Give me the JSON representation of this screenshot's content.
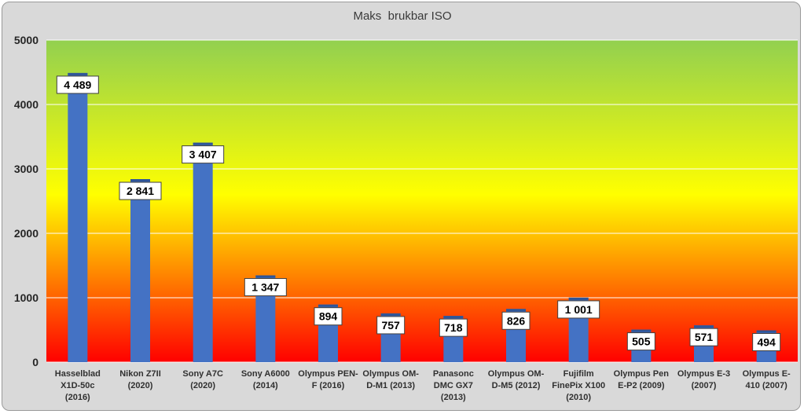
{
  "chart_data": {
    "type": "bar",
    "title": "Maks  brukbar ISO",
    "xlabel": "",
    "ylabel": "",
    "ylim": [
      0,
      5000
    ],
    "yticks": [
      0,
      1000,
      2000,
      3000,
      4000,
      5000
    ],
    "grid": true,
    "legend": "none",
    "categories": [
      "Hasselblad X1D-50c (2016)",
      "Nikon Z7II (2020)",
      "Sony A7C (2020)",
      "Sony A6000 (2014)",
      "Olympus PEN-F (2016)",
      "Olympus OM-D-M1 (2013)",
      "Panasonc DMC GX7 (2013)",
      "Olympus OM-D-M5 (2012)",
      "Fujifilm FinePix X100 (2010)",
      "Olympus Pen E-P2 (2009)",
      "Olympus E-3 (2007)",
      "Olympus E-410 (2007)"
    ],
    "category_lines": [
      [
        "Hasselblad",
        "X1D-50c",
        "(2016)"
      ],
      [
        "Nikon Z7II",
        "(2020)"
      ],
      [
        "Sony A7C",
        "(2020)"
      ],
      [
        "Sony A6000",
        "(2014)"
      ],
      [
        "Olympus PEN-",
        "F (2016)"
      ],
      [
        "Olympus OM-",
        "D-M1 (2013)"
      ],
      [
        "Panasonc",
        "DMC GX7",
        "(2013)"
      ],
      [
        "Olympus OM-",
        "D-M5 (2012)"
      ],
      [
        "Fujifilm",
        "FinePix X100",
        "(2010)"
      ],
      [
        "Olympus Pen",
        "E-P2 (2009)"
      ],
      [
        "Olympus E-3",
        "(2007)"
      ],
      [
        "Olympus E-",
        "410 (2007)"
      ]
    ],
    "values": [
      4489,
      2841,
      3407,
      1347,
      894,
      757,
      718,
      826,
      1001,
      505,
      571,
      494
    ],
    "data_labels": [
      "4 489",
      "2 841",
      "3 407",
      "1 347",
      "894",
      "757",
      "718",
      "826",
      "1 001",
      "505",
      "571",
      "494"
    ],
    "colors": {
      "bar": "#4472c4",
      "bar_top": "#2f5597",
      "background_top": "#92d050",
      "background_mid": "#ffff00",
      "background_bottom": "#ff0000",
      "gridline": "#ffffff",
      "frame": "#d9d9d9"
    }
  }
}
